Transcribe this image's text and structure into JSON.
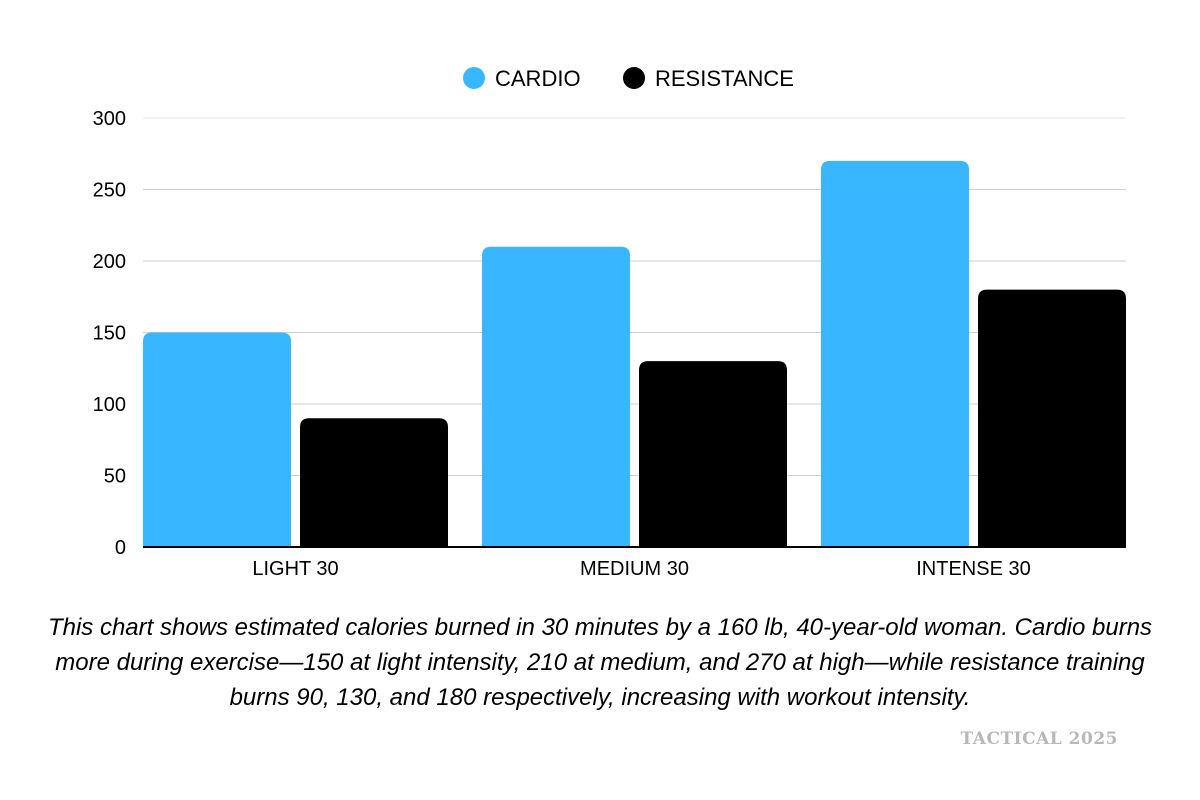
{
  "chart_data": {
    "type": "bar",
    "categories": [
      "LIGHT 30",
      "MEDIUM 30",
      "INTENSE 30"
    ],
    "series": [
      {
        "name": "CARDIO",
        "values": [
          150,
          210,
          270
        ],
        "color": "#38b6ff"
      },
      {
        "name": "RESISTANCE",
        "values": [
          90,
          130,
          180
        ],
        "color": "#000000"
      }
    ],
    "ylim": [
      0,
      300
    ],
    "yticks": [
      0,
      50,
      100,
      150,
      200,
      250,
      300
    ],
    "grid": true,
    "legend_position": "top-center"
  },
  "caption": "This chart shows estimated calories burned in 30 minutes by a 160 lb, 40-year-old woman. Cardio burns more during exercise—150 at light intensity, 210 at medium, and 270 at high—while resistance training burns 90, 130, and 180 respectively, increasing with workout intensity.",
  "watermark": "TACTICAL 2025"
}
